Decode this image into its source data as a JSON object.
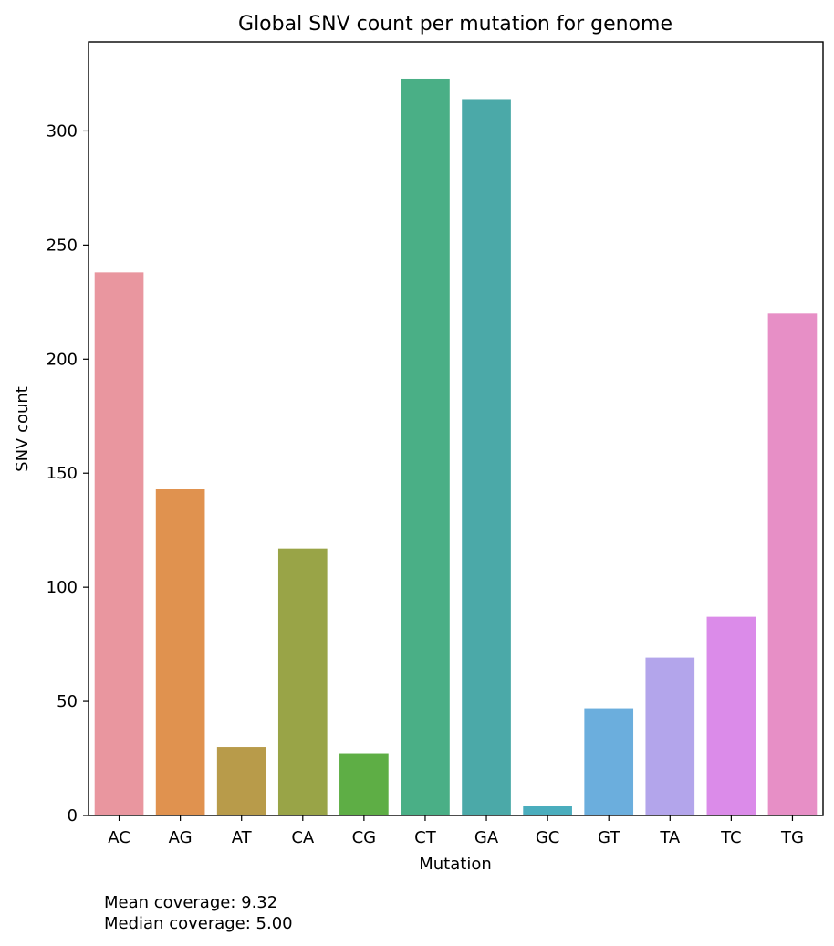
{
  "chart_data": {
    "type": "bar",
    "title": "Global SNV count per mutation for genome",
    "xlabel": "Mutation",
    "ylabel": "SNV count",
    "categories": [
      "AC",
      "AG",
      "AT",
      "CA",
      "CG",
      "CT",
      "GA",
      "GC",
      "GT",
      "TA",
      "TC",
      "TG"
    ],
    "values": [
      238,
      143,
      30,
      117,
      27,
      323,
      314,
      4,
      47,
      69,
      87,
      220
    ],
    "colors": [
      "#e9969f",
      "#e0924f",
      "#b89b4a",
      "#99a447",
      "#5eae45",
      "#4aaf86",
      "#4ba9a8",
      "#4aadbd",
      "#6baedd",
      "#b3a5eb",
      "#db8be9",
      "#e78fc6"
    ],
    "yticks": [
      0,
      50,
      100,
      150,
      200,
      250,
      300
    ],
    "ylim": [
      0,
      339
    ],
    "grid": false,
    "legend": "none"
  },
  "notes": {
    "mean": "Mean coverage: 9.32",
    "median": "Median coverage: 5.00"
  }
}
